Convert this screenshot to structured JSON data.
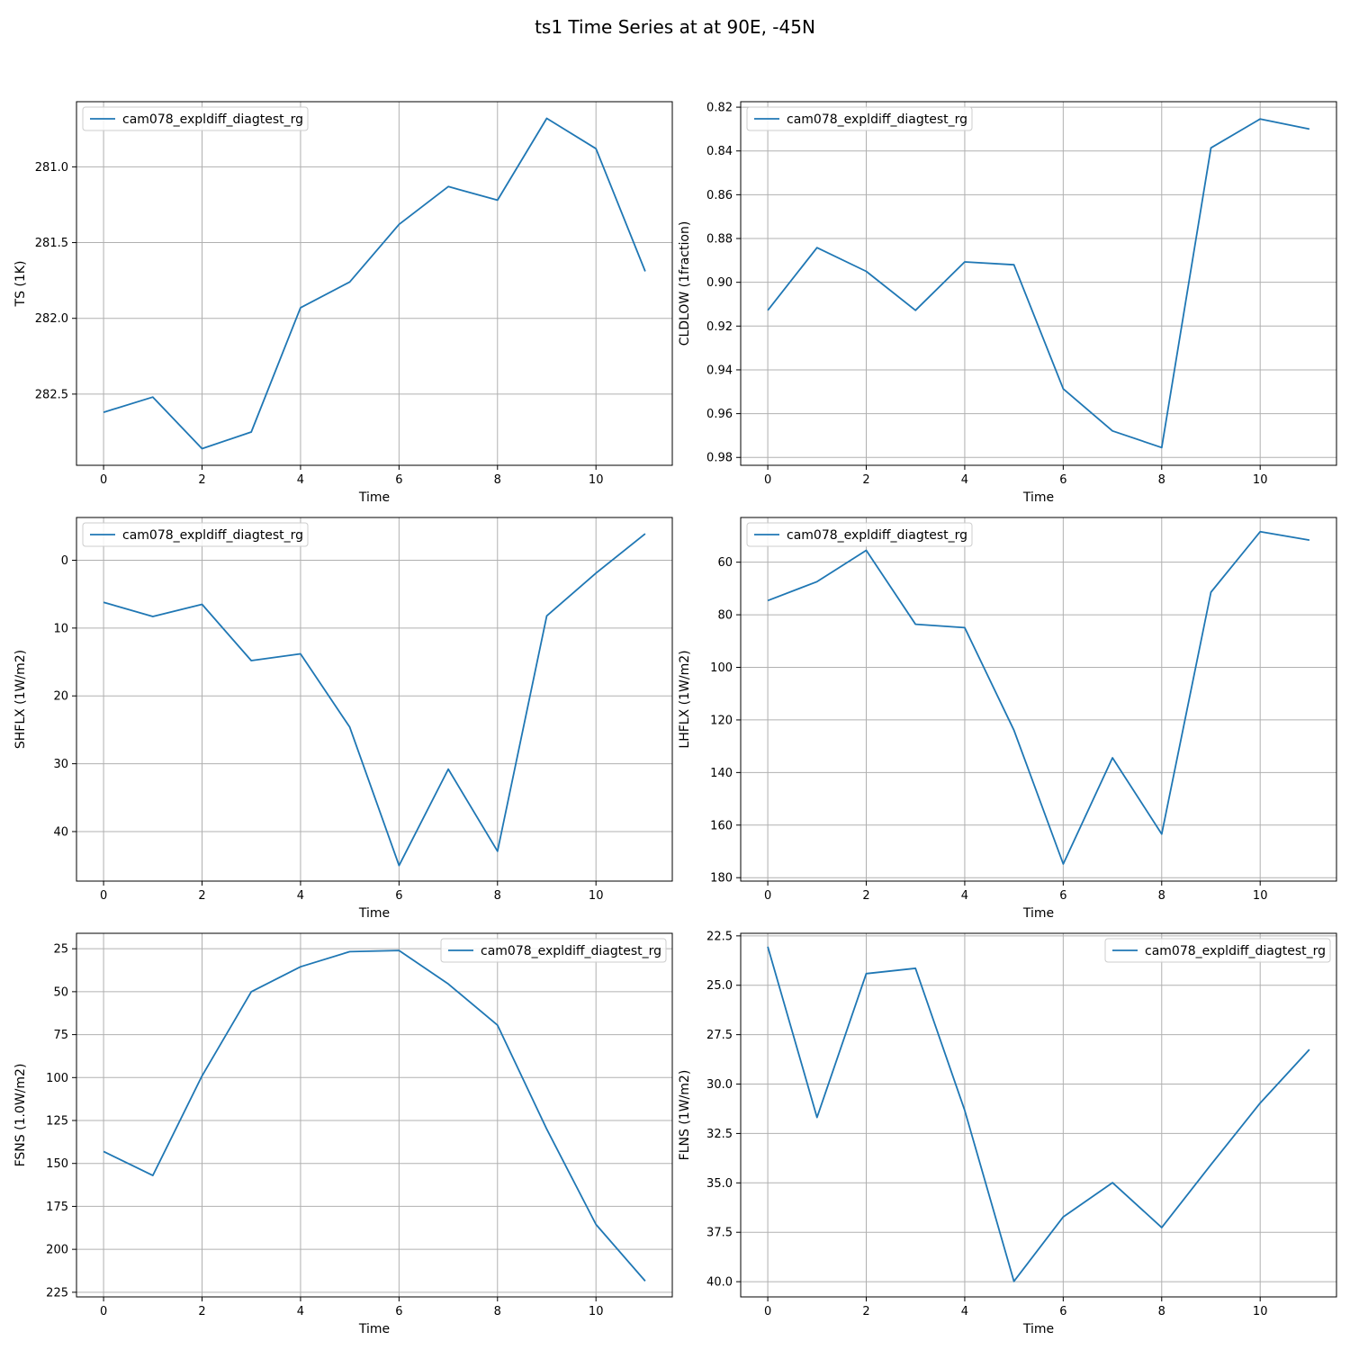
{
  "figure": {
    "title": "ts1 Time Series at at 90E, -45N"
  },
  "colors": {
    "series": "#1f77b4",
    "grid": "#b0b0b0",
    "axes": "#000000",
    "legend_border": "#cccccc"
  },
  "chart_data": [
    {
      "type": "line",
      "xlabel": "Time",
      "ylabel": "TS (1K)",
      "x_ticks": [
        0,
        2,
        4,
        6,
        8,
        10
      ],
      "y_ticks": [
        281.0,
        281.5,
        282.0,
        282.5
      ],
      "y_tick_labels": [
        "281.0",
        "281.5",
        "282.0",
        "282.5"
      ],
      "ylim": [
        280.57,
        282.97
      ],
      "y_inverted": true,
      "grid": true,
      "legend_position": "top-left",
      "series": [
        {
          "name": "cam078_expldiff_diagtest_rg",
          "x": [
            0,
            1,
            2,
            3,
            4,
            5,
            6,
            7,
            8,
            9,
            10,
            11
          ],
          "values": [
            282.62,
            282.52,
            282.86,
            282.75,
            281.93,
            281.76,
            281.38,
            281.13,
            281.22,
            280.68,
            280.88,
            281.69
          ]
        }
      ]
    },
    {
      "type": "line",
      "xlabel": "Time",
      "ylabel": "CLDLOW (1fraction)",
      "x_ticks": [
        0,
        2,
        4,
        6,
        8,
        10
      ],
      "y_ticks": [
        0.82,
        0.84,
        0.86,
        0.88,
        0.9,
        0.92,
        0.94,
        0.96,
        0.98
      ],
      "y_tick_labels": [
        "0.82",
        "0.84",
        "0.86",
        "0.88",
        "0.90",
        "0.92",
        "0.94",
        "0.96",
        "0.98"
      ],
      "ylim": [
        0.8175,
        0.9836
      ],
      "y_inverted": true,
      "grid": true,
      "legend_position": "top-left",
      "series": [
        {
          "name": "cam078_expldiff_diagtest_rg",
          "x": [
            0,
            1,
            2,
            3,
            4,
            5,
            6,
            7,
            8,
            9,
            10,
            11
          ],
          "values": [
            0.9128,
            0.8842,
            0.895,
            0.9128,
            0.8907,
            0.892,
            0.9487,
            0.9679,
            0.9755,
            0.8386,
            0.8254,
            0.83
          ]
        }
      ]
    },
    {
      "type": "line",
      "xlabel": "Time",
      "ylabel": "SHFLX (1W/m2)",
      "x_ticks": [
        0,
        2,
        4,
        6,
        8,
        10
      ],
      "y_ticks": [
        0,
        10,
        20,
        30,
        40
      ],
      "y_tick_labels": [
        "0",
        "10",
        "20",
        "30",
        "40"
      ],
      "ylim": [
        -6.3,
        47.3
      ],
      "y_inverted": true,
      "grid": true,
      "legend_position": "top-left",
      "series": [
        {
          "name": "cam078_expldiff_diagtest_rg",
          "x": [
            0,
            1,
            2,
            3,
            4,
            5,
            6,
            7,
            8,
            9,
            10,
            11
          ],
          "values": [
            6.2,
            8.3,
            6.5,
            14.8,
            13.8,
            24.6,
            45.0,
            30.8,
            42.9,
            8.2,
            1.9,
            -3.9
          ]
        }
      ]
    },
    {
      "type": "line",
      "xlabel": "Time",
      "ylabel": "LHFLX (1W/m2)",
      "x_ticks": [
        0,
        2,
        4,
        6,
        8,
        10
      ],
      "y_ticks": [
        60,
        80,
        100,
        120,
        140,
        160,
        180
      ],
      "y_tick_labels": [
        "60",
        "80",
        "100",
        "120",
        "140",
        "160",
        "180"
      ],
      "ylim": [
        43.0,
        181.3
      ],
      "y_inverted": true,
      "grid": true,
      "legend_position": "top-left",
      "series": [
        {
          "name": "cam078_expldiff_diagtest_rg",
          "x": [
            0,
            1,
            2,
            3,
            4,
            5,
            6,
            7,
            8,
            9,
            10,
            11
          ],
          "values": [
            74.6,
            67.4,
            55.5,
            83.6,
            84.9,
            123.9,
            174.8,
            134.4,
            163.4,
            71.4,
            48.4,
            51.6
          ]
        }
      ]
    },
    {
      "type": "line",
      "xlabel": "Time",
      "ylabel": "FSNS (1.0W/m2)",
      "x_ticks": [
        0,
        2,
        4,
        6,
        8,
        10
      ],
      "y_ticks": [
        25,
        50,
        75,
        100,
        125,
        150,
        175,
        200,
        225
      ],
      "y_tick_labels": [
        "25",
        "50",
        "75",
        "100",
        "125",
        "150",
        "175",
        "200",
        "225"
      ],
      "ylim": [
        16.0,
        227.7
      ],
      "y_inverted": true,
      "grid": true,
      "legend_position": "top-right",
      "series": [
        {
          "name": "cam078_expldiff_diagtest_rg",
          "x": [
            0,
            1,
            2,
            3,
            4,
            5,
            6,
            7,
            8,
            9,
            10,
            11
          ],
          "values": [
            143,
            157,
            99,
            50,
            35.5,
            26.7,
            26.0,
            45.5,
            69.5,
            130,
            185.5,
            218.5
          ]
        }
      ]
    },
    {
      "type": "line",
      "xlabel": "Time",
      "ylabel": "FLNS (1W/m2)",
      "x_ticks": [
        0,
        2,
        4,
        6,
        8,
        10
      ],
      "y_ticks": [
        22.5,
        25.0,
        27.5,
        30.0,
        32.5,
        35.0,
        37.5,
        40.0
      ],
      "y_tick_labels": [
        "22.5",
        "25.0",
        "27.5",
        "30.0",
        "32.5",
        "35.0",
        "37.5",
        "40.0"
      ],
      "ylim": [
        22.37,
        40.77
      ],
      "y_inverted": true,
      "grid": true,
      "legend_position": "top-right",
      "series": [
        {
          "name": "cam078_expldiff_diagtest_rg",
          "x": [
            0,
            1,
            2,
            3,
            4,
            5,
            6,
            7,
            8,
            9,
            10,
            11
          ],
          "values": [
            23.05,
            31.69,
            24.41,
            24.14,
            31.33,
            39.98,
            36.72,
            34.99,
            37.26,
            34.08,
            30.96,
            28.25
          ]
        }
      ]
    }
  ]
}
